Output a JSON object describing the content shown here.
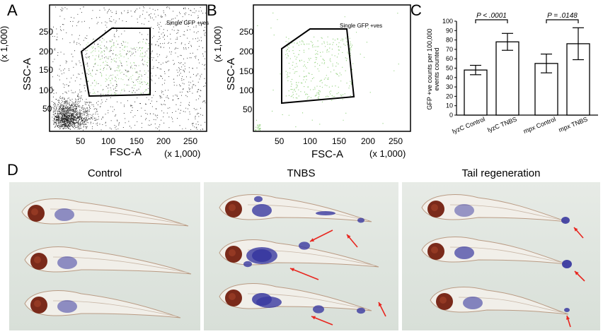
{
  "panels": {
    "a": {
      "letter": "A",
      "gate_label": "Single GFP +ves",
      "y_axis_title": "SSC-A",
      "y_axis_unit": "(x 1,000)",
      "y_ticks": [
        "250",
        "200",
        "150",
        "100",
        "50"
      ],
      "x_axis_title": "FSC-A",
      "x_axis_unit": "(x 1,000)",
      "x_ticks": [
        "50",
        "100",
        "150",
        "200",
        "250"
      ]
    },
    "b": {
      "letter": "B",
      "gate_label": "Single GFP +ves",
      "y_axis_title": "SSC-A",
      "y_axis_unit": "(x 1,000)",
      "y_ticks": [
        "250",
        "200",
        "150",
        "100",
        "50"
      ],
      "x_axis_title": "FSC-A",
      "x_axis_unit": "(x 1,000)",
      "x_ticks": [
        "50",
        "100",
        "150",
        "200",
        "250"
      ]
    },
    "c": {
      "letter": "C",
      "ylabel_lines": [
        "GFP +ve counts per 100,000",
        "events counted"
      ],
      "sig1": "P < .0001",
      "sig2": "P = .0148"
    },
    "d": {
      "letter": "D",
      "labels": [
        "Control",
        "TNBS",
        "Tail regeneration"
      ]
    }
  },
  "colors": {
    "gate_line": "#000000",
    "gfp_events": "#8fd07a",
    "staining": "#3a3aa0",
    "eye": "#7a2a1a",
    "arrow": "#e8261f"
  },
  "chart_data": {
    "type": "bar",
    "categories": [
      "lyzC Control",
      "lyzC TNBS",
      "mpx Control",
      "mpx TNBS"
    ],
    "values": [
      48,
      78,
      55,
      76
    ],
    "errors": [
      5,
      9,
      10,
      17
    ],
    "xlabel": "",
    "ylabel": "GFP +ve counts per 100,000 events counted",
    "ylim": [
      0,
      100
    ],
    "yticks": [
      "0",
      "10",
      "20",
      "30",
      "40",
      "50",
      "60",
      "70",
      "80",
      "90",
      "100"
    ],
    "significance": [
      {
        "between": [
          "lyzC Control",
          "lyzC TNBS"
        ],
        "label": "P < .0001"
      },
      {
        "between": [
          "mpx Control",
          "mpx TNBS"
        ],
        "label": "P = .0148"
      }
    ]
  }
}
